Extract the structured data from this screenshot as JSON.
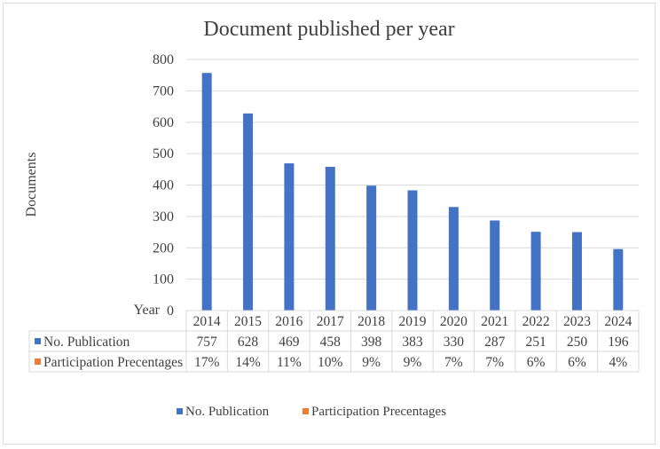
{
  "chart_data": {
    "type": "bar",
    "title": "Document published per year",
    "ylabel": "Documents",
    "xlabel": "Year",
    "ylim": [
      0,
      800
    ],
    "yticks": [
      0,
      100,
      200,
      300,
      400,
      500,
      600,
      700,
      800
    ],
    "grid": true,
    "categories": [
      "2014",
      "2015",
      "2016",
      "2017",
      "2018",
      "2019",
      "2020",
      "2021",
      "2022",
      "2023",
      "2024"
    ],
    "series": [
      {
        "name": "No. Publication",
        "color": "#4472c4",
        "values": [
          757,
          628,
          469,
          458,
          398,
          383,
          330,
          287,
          251,
          250,
          196
        ],
        "labels": [
          "757",
          "628",
          "469",
          "458",
          "398",
          "383",
          "330",
          "287",
          "251",
          "250",
          "196"
        ]
      },
      {
        "name": "Participation Precentages",
        "color": "#ed7d31",
        "values": [
          17,
          14,
          11,
          10,
          9,
          9,
          7,
          7,
          6,
          6,
          4
        ],
        "labels": [
          "17%",
          "14%",
          "11%",
          "10%",
          "9%",
          "9%",
          "7%",
          "7%",
          "6%",
          "6%",
          "4%"
        ]
      }
    ],
    "legend_position": "bottom",
    "data_table": true
  }
}
